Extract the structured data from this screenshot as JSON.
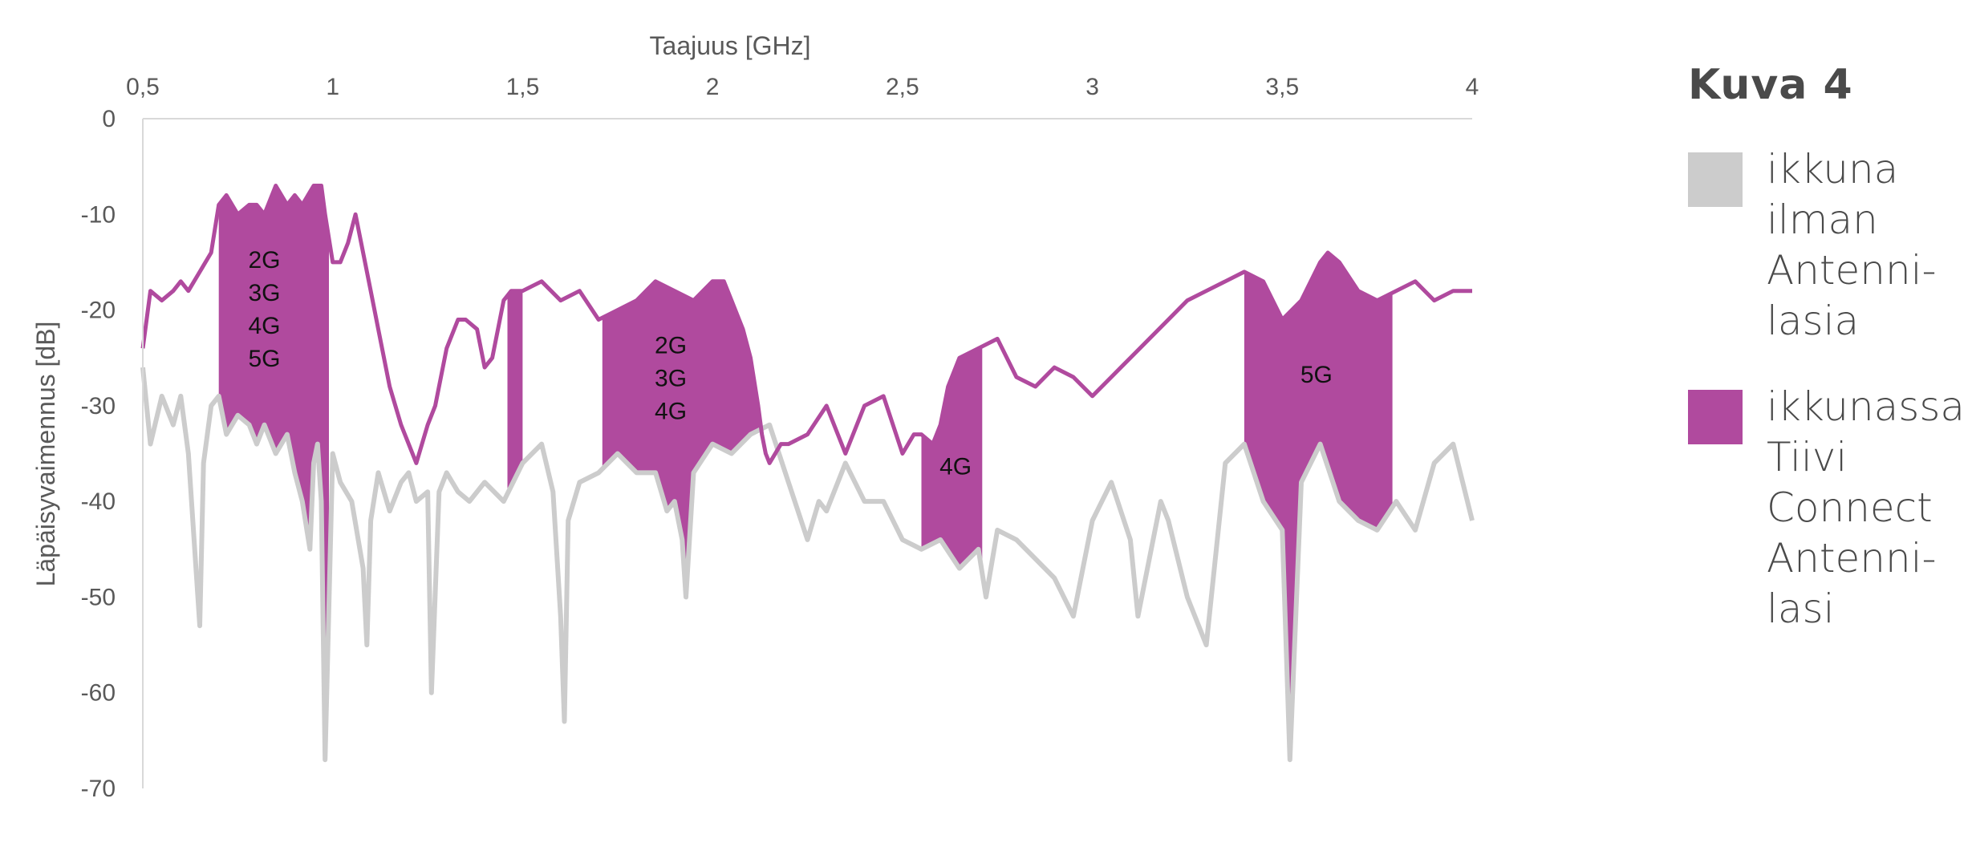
{
  "chart_data": {
    "type": "area",
    "title": "",
    "xlabel": "Taajuus  [GHz]",
    "ylabel": "Läpäisyvaimennus [dB]",
    "x_axis_position": "top",
    "xlim": [
      0.5,
      4
    ],
    "ylim": [
      -70,
      0
    ],
    "x_ticks": [
      "0,5",
      "1",
      "1,5",
      "2",
      "2,5",
      "3",
      "3,5",
      "4"
    ],
    "y_ticks": [
      "0",
      "-10",
      "-20",
      "-30",
      "-40",
      "-50",
      "-60",
      "-70"
    ],
    "grid": false,
    "legend_position": "right",
    "series": [
      {
        "name": "ikkuna ilman Antenni-lasia",
        "color": "#cccccc",
        "x": [
          0.5,
          0.52,
          0.55,
          0.58,
          0.6,
          0.62,
          0.65,
          0.66,
          0.68,
          0.7,
          0.72,
          0.75,
          0.78,
          0.8,
          0.82,
          0.85,
          0.88,
          0.9,
          0.92,
          0.94,
          0.95,
          0.96,
          0.97,
          0.98,
          1.0,
          1.02,
          1.05,
          1.08,
          1.09,
          1.1,
          1.12,
          1.15,
          1.18,
          1.2,
          1.22,
          1.25,
          1.26,
          1.28,
          1.3,
          1.33,
          1.36,
          1.4,
          1.45,
          1.5,
          1.55,
          1.58,
          1.6,
          1.61,
          1.62,
          1.65,
          1.7,
          1.75,
          1.8,
          1.85,
          1.88,
          1.9,
          1.92,
          1.93,
          1.95,
          2.0,
          2.05,
          2.1,
          2.15,
          2.2,
          2.25,
          2.28,
          2.3,
          2.35,
          2.4,
          2.45,
          2.5,
          2.55,
          2.6,
          2.65,
          2.7,
          2.72,
          2.75,
          2.8,
          2.85,
          2.9,
          2.95,
          3.0,
          3.05,
          3.1,
          3.12,
          3.15,
          3.18,
          3.2,
          3.25,
          3.3,
          3.35,
          3.4,
          3.45,
          3.5,
          3.52,
          3.55,
          3.6,
          3.65,
          3.7,
          3.75,
          3.8,
          3.85,
          3.9,
          3.95,
          4.0
        ],
        "values": [
          -26,
          -34,
          -29,
          -32,
          -29,
          -35,
          -53,
          -36,
          -30,
          -29,
          -33,
          -31,
          -32,
          -34,
          -32,
          -35,
          -33,
          -37,
          -40,
          -45,
          -36,
          -34,
          -40,
          -67,
          -35,
          -38,
          -40,
          -47,
          -55,
          -42,
          -37,
          -41,
          -38,
          -37,
          -40,
          -39,
          -60,
          -39,
          -37,
          -39,
          -40,
          -38,
          -40,
          -36,
          -34,
          -39,
          -52,
          -63,
          -42,
          -38,
          -37,
          -35,
          -37,
          -37,
          -41,
          -40,
          -44,
          -50,
          -37,
          -34,
          -35,
          -33,
          -32,
          -38,
          -44,
          -40,
          -41,
          -36,
          -40,
          -40,
          -44,
          -45,
          -44,
          -47,
          -45,
          -50,
          -43,
          -44,
          -46,
          -48,
          -52,
          -42,
          -38,
          -44,
          -52,
          -46,
          -40,
          -42,
          -50,
          -55,
          -36,
          -34,
          -40,
          -43,
          -67,
          -38,
          -34,
          -40,
          -42,
          -43,
          -40,
          -43,
          -36,
          -34,
          -42
        ]
      },
      {
        "name": "ikkunassa Tiivi Connect Antenni-lasi",
        "color": "#b04a9e",
        "x": [
          0.5,
          0.52,
          0.55,
          0.58,
          0.6,
          0.62,
          0.65,
          0.68,
          0.7,
          0.72,
          0.75,
          0.78,
          0.8,
          0.82,
          0.85,
          0.88,
          0.9,
          0.92,
          0.95,
          0.97,
          0.98,
          1.0,
          1.02,
          1.04,
          1.06,
          1.08,
          1.1,
          1.12,
          1.15,
          1.18,
          1.2,
          1.22,
          1.25,
          1.27,
          1.3,
          1.33,
          1.35,
          1.38,
          1.4,
          1.42,
          1.45,
          1.47,
          1.5,
          1.55,
          1.6,
          1.65,
          1.7,
          1.75,
          1.8,
          1.85,
          1.9,
          1.95,
          2.0,
          2.03,
          2.05,
          2.08,
          2.1,
          2.12,
          2.13,
          2.14,
          2.15,
          2.18,
          2.2,
          2.25,
          2.3,
          2.35,
          2.4,
          2.45,
          2.5,
          2.53,
          2.55,
          2.58,
          2.6,
          2.62,
          2.65,
          2.7,
          2.75,
          2.8,
          2.85,
          2.9,
          2.95,
          3.0,
          3.05,
          3.1,
          3.15,
          3.2,
          3.25,
          3.3,
          3.35,
          3.4,
          3.45,
          3.5,
          3.55,
          3.6,
          3.62,
          3.65,
          3.7,
          3.75,
          3.8,
          3.85,
          3.9,
          3.95,
          4.0
        ],
        "values": [
          -24,
          -18,
          -19,
          -18,
          -17,
          -18,
          -16,
          -14,
          -9,
          -8,
          -10,
          -9,
          -9,
          -10,
          -7,
          -9,
          -8,
          -9,
          -7,
          -7,
          -10,
          -15,
          -15,
          -13,
          -10,
          -14,
          -18,
          -22,
          -28,
          -32,
          -34,
          -36,
          -32,
          -30,
          -24,
          -21,
          -21,
          -22,
          -26,
          -25,
          -19,
          -18,
          -18,
          -17,
          -19,
          -18,
          -21,
          -20,
          -19,
          -17,
          -18,
          -19,
          -17,
          -17,
          -19,
          -22,
          -25,
          -30,
          -33,
          -35,
          -36,
          -34,
          -34,
          -33,
          -30,
          -35,
          -30,
          -29,
          -35,
          -33,
          -33,
          -34,
          -32,
          -28,
          -25,
          -24,
          -23,
          -27,
          -28,
          -26,
          -27,
          -29,
          -27,
          -25,
          -23,
          -21,
          -19,
          -18,
          -17,
          -16,
          -17,
          -21,
          -19,
          -15,
          -14,
          -15,
          -18,
          -19,
          -18,
          -17,
          -19,
          -18,
          -18
        ]
      }
    ],
    "shaded_bands": [
      {
        "label": "2G\n3G\n4G\n5G",
        "x_range": [
          0.7,
          0.99
        ]
      },
      {
        "label": "",
        "x_range": [
          1.46,
          1.5
        ]
      },
      {
        "label": "2G\n3G\n4G",
        "x_range": [
          1.71,
          2.13
        ]
      },
      {
        "label": "4G",
        "x_range": [
          2.55,
          2.71
        ]
      },
      {
        "label": "5G",
        "x_range": [
          3.4,
          3.79
        ]
      }
    ]
  },
  "legend": {
    "title": "Kuva 4",
    "items": [
      {
        "label": "ikkuna ilman Antenni-lasia",
        "color": "#cccccc"
      },
      {
        "label": "ikkunassa Tiivi Connect Antenni-lasi",
        "color": "#b04a9e"
      }
    ]
  }
}
